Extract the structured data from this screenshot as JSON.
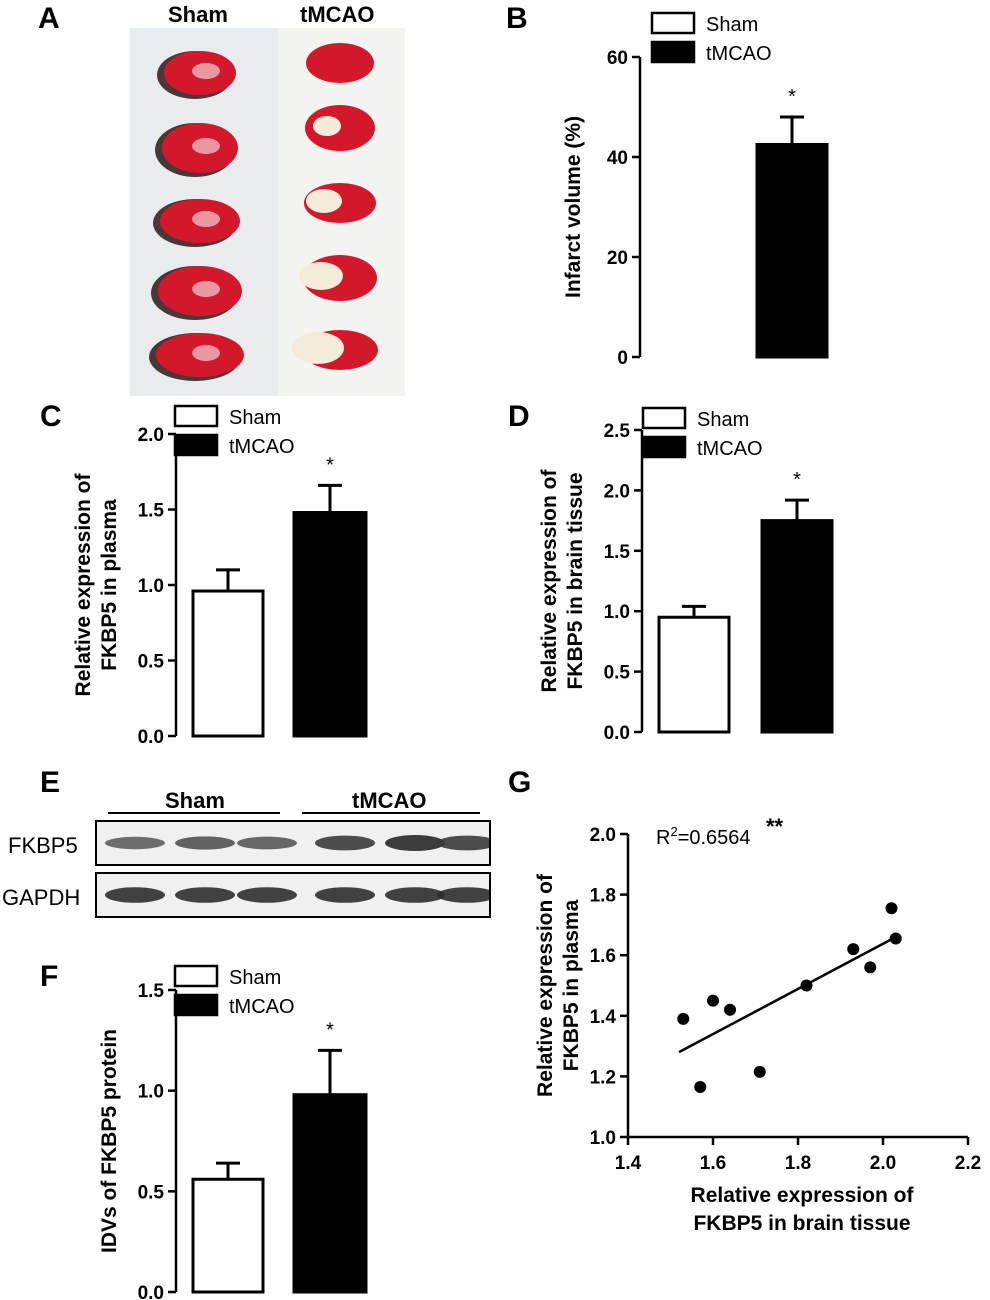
{
  "panels": {
    "a": {
      "letter": "A",
      "col_sham": "Sham",
      "col_tmcao": "tMCAO",
      "sham_sections": 5,
      "tmcao_sections": 5
    },
    "b": {
      "letter": "B"
    },
    "c": {
      "letter": "C"
    },
    "d": {
      "letter": "D"
    },
    "e": {
      "letter": "E",
      "group_sham": "Sham",
      "group_tmcao": "tMCAO",
      "row1": "FKBP5",
      "row2": "GAPDH"
    },
    "f": {
      "letter": "F"
    },
    "g": {
      "letter": "G"
    }
  },
  "legend": {
    "sham": "Sham",
    "tmcao": "tMCAO"
  },
  "colors": {
    "sham_fill": "#ffffff",
    "tmcao_fill": "#000000",
    "tissue_red": "#d4182c",
    "infarct": "#f2ecd8"
  },
  "chart_data": [
    {
      "id": "B",
      "type": "bar",
      "categories": [
        "Sham",
        "tMCAO"
      ],
      "values": [
        0,
        42.5
      ],
      "errors": [
        0,
        5.5
      ],
      "significance": [
        "",
        "*"
      ],
      "ylabel": "Infarct volume (%)",
      "ylim": [
        0,
        60
      ],
      "yticks": [
        0,
        20,
        40,
        60
      ],
      "ytick_labels": [
        "0",
        "20",
        "40",
        "60"
      ],
      "legend_position": "top-right"
    },
    {
      "id": "C",
      "type": "bar",
      "categories": [
        "Sham",
        "tMCAO"
      ],
      "values": [
        0.96,
        1.48
      ],
      "errors": [
        0.14,
        0.18
      ],
      "significance": [
        "",
        "*"
      ],
      "ylabel_lines": [
        "Relative expression of",
        "FKBP5 in plasma"
      ],
      "ylim": [
        0,
        2.0
      ],
      "yticks": [
        0,
        0.5,
        1.0,
        1.5,
        2.0
      ],
      "ytick_labels": [
        "0.0",
        "0.5",
        "1.0",
        "1.5",
        "2.0"
      ],
      "legend_position": "top-left"
    },
    {
      "id": "D",
      "type": "bar",
      "categories": [
        "Sham",
        "tMCAO"
      ],
      "values": [
        0.95,
        1.75
      ],
      "errors": [
        0.09,
        0.17
      ],
      "significance": [
        "",
        "*"
      ],
      "ylabel_lines": [
        "Relative expression of",
        "FKBP5 in brain tissue"
      ],
      "ylim": [
        0,
        2.5
      ],
      "yticks": [
        0,
        0.5,
        1.0,
        1.5,
        2.0,
        2.5
      ],
      "ytick_labels": [
        "0.0",
        "0.5",
        "1.0",
        "1.5",
        "2.0",
        "2.5"
      ],
      "legend_position": "top-left"
    },
    {
      "id": "F",
      "type": "bar",
      "categories": [
        "Sham",
        "tMCAO"
      ],
      "values": [
        0.56,
        0.98
      ],
      "errors": [
        0.08,
        0.22
      ],
      "significance": [
        "",
        "*"
      ],
      "ylabel": "IDVs of FKBP5 protein",
      "ylim": [
        0,
        1.5
      ],
      "yticks": [
        0,
        0.5,
        1.0,
        1.5
      ],
      "ytick_labels": [
        "0.0",
        "0.5",
        "1.0",
        "1.5"
      ],
      "legend_position": "top-left"
    },
    {
      "id": "G",
      "type": "scatter",
      "points": [
        {
          "x": 1.53,
          "y": 1.39
        },
        {
          "x": 1.57,
          "y": 1.165
        },
        {
          "x": 1.6,
          "y": 1.45
        },
        {
          "x": 1.64,
          "y": 1.42
        },
        {
          "x": 1.71,
          "y": 1.215
        },
        {
          "x": 1.82,
          "y": 1.5
        },
        {
          "x": 1.93,
          "y": 1.62
        },
        {
          "x": 1.97,
          "y": 1.56
        },
        {
          "x": 2.02,
          "y": 1.755
        },
        {
          "x": 2.03,
          "y": 1.655
        }
      ],
      "fit_line": {
        "x0": 1.52,
        "y0": 1.28,
        "x1": 2.03,
        "y1": 1.66
      },
      "annotation": {
        "base": "R",
        "sup": "2",
        "text": "=0.6564",
        "significance": "**"
      },
      "xlabel_lines": [
        "Relative expression of",
        "FKBP5  in brain tissue"
      ],
      "ylabel_lines": [
        "Relative expression of",
        "FKBP5 in plasma"
      ],
      "xlim": [
        1.4,
        2.2
      ],
      "xticks": [
        1.4,
        1.6,
        1.8,
        2.0,
        2.2
      ],
      "xtick_labels": [
        "1.4",
        "1.6",
        "1.8",
        "2.0",
        "2.2"
      ],
      "ylim": [
        1.0,
        2.0
      ],
      "yticks": [
        1.0,
        1.2,
        1.4,
        1.6,
        1.8,
        2.0
      ],
      "ytick_labels": [
        "1.0",
        "1.2",
        "1.4",
        "1.6",
        "1.8",
        "2.0"
      ]
    }
  ],
  "blot": {
    "FKBP5": [
      0.55,
      0.65,
      0.6,
      0.85,
      1.0,
      0.85
    ],
    "GAPDH": [
      0.95,
      0.95,
      0.95,
      0.95,
      0.95,
      0.95
    ]
  }
}
